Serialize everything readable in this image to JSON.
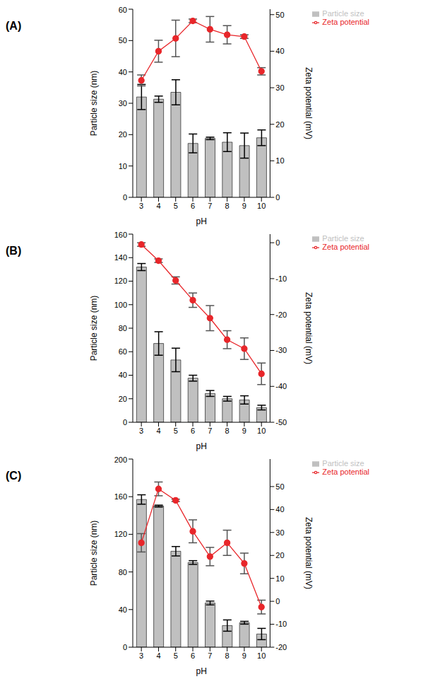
{
  "chart_data": [
    {
      "type": "bar",
      "title": "(A)",
      "categories": [
        "3",
        "4",
        "5",
        "6",
        "7",
        "8",
        "9",
        "10"
      ],
      "x_label": "pH",
      "y_label": "Particle size (nm)",
      "y2_label": "Zeta potential (mV)",
      "ylim": [
        0,
        60
      ],
      "yticks": [
        0,
        10,
        20,
        30,
        40,
        50,
        60
      ],
      "y2lim": [
        0,
        51.5
      ],
      "y2ticks": [
        0,
        10,
        20,
        30,
        40,
        50
      ],
      "legend": "upper right",
      "series": [
        {
          "name": "Particle size",
          "type": "bar",
          "color": "#c0c0c0",
          "values": [
            32,
            31.3,
            33.5,
            17.2,
            18.8,
            17.6,
            16.5,
            19
          ],
          "errors": [
            4,
            1,
            4,
            3,
            0.4,
            3,
            4,
            2.5
          ]
        },
        {
          "name": "Zeta potential",
          "type": "line",
          "axis": "y2",
          "color": "#e8262a",
          "marker": "circle",
          "values": [
            32,
            40,
            43.5,
            48.3,
            46,
            44.5,
            44,
            34.5
          ],
          "errors": [
            1.5,
            3,
            5,
            0.5,
            3.5,
            2.5,
            0.5,
            1
          ]
        }
      ]
    },
    {
      "type": "bar",
      "title": "(B)",
      "categories": [
        "3",
        "4",
        "5",
        "6",
        "7",
        "8",
        "9",
        "10"
      ],
      "x_label": "pH",
      "y_label": "Particle size (nm)",
      "y2_label": "Zeta potential (mV)",
      "ylim": [
        0,
        160
      ],
      "yticks": [
        0,
        20,
        40,
        60,
        80,
        100,
        120,
        140,
        160
      ],
      "y2lim": [
        -50,
        2.4
      ],
      "y2ticks": [
        -50,
        -40,
        -30,
        -20,
        -10,
        0
      ],
      "legend": "upper right",
      "series": [
        {
          "name": "Particle size",
          "type": "bar",
          "color": "#c0c0c0",
          "values": [
            132,
            67,
            53,
            37.5,
            24.5,
            20,
            19,
            12.5
          ],
          "errors": [
            3,
            10,
            10,
            2.5,
            2.5,
            2,
            3.5,
            2
          ]
        },
        {
          "name": "Zeta potential",
          "type": "line",
          "axis": "y2",
          "color": "#e8262a",
          "marker": "circle",
          "values": [
            -0.5,
            -5,
            -10.5,
            -16,
            -21,
            -27,
            -29.5,
            -36.5
          ],
          "errors": [
            0.5,
            0.5,
            1,
            2,
            3.5,
            2.5,
            3,
            3
          ]
        }
      ]
    },
    {
      "type": "bar",
      "title": "(C)",
      "categories": [
        "3",
        "4",
        "5",
        "6",
        "7",
        "8",
        "9",
        "10"
      ],
      "x_label": "pH",
      "y_label": "Particle size (nm)",
      "y2_label": "Zeta potential (mV)",
      "ylim": [
        0,
        200
      ],
      "yticks": [
        0,
        40,
        80,
        120,
        160,
        200
      ],
      "y2lim": [
        -20,
        62
      ],
      "y2ticks": [
        -20,
        -10,
        0,
        10,
        20,
        30,
        40,
        50
      ],
      "legend": "upper right",
      "series": [
        {
          "name": "Particle size",
          "type": "bar",
          "color": "#c0c0c0",
          "values": [
            157,
            150,
            102,
            90,
            47,
            23,
            26,
            14
          ],
          "errors": [
            5,
            1,
            5,
            2,
            2,
            6,
            1.5,
            6
          ]
        },
        {
          "name": "Zeta potential",
          "type": "line",
          "axis": "y2",
          "color": "#e8262a",
          "marker": "circle",
          "values": [
            25.5,
            49,
            44,
            30.5,
            19.5,
            25.5,
            16.5,
            -2.5
          ],
          "errors": [
            4,
            3,
            0.5,
            5,
            4,
            5.5,
            4.5,
            3
          ]
        }
      ]
    }
  ]
}
